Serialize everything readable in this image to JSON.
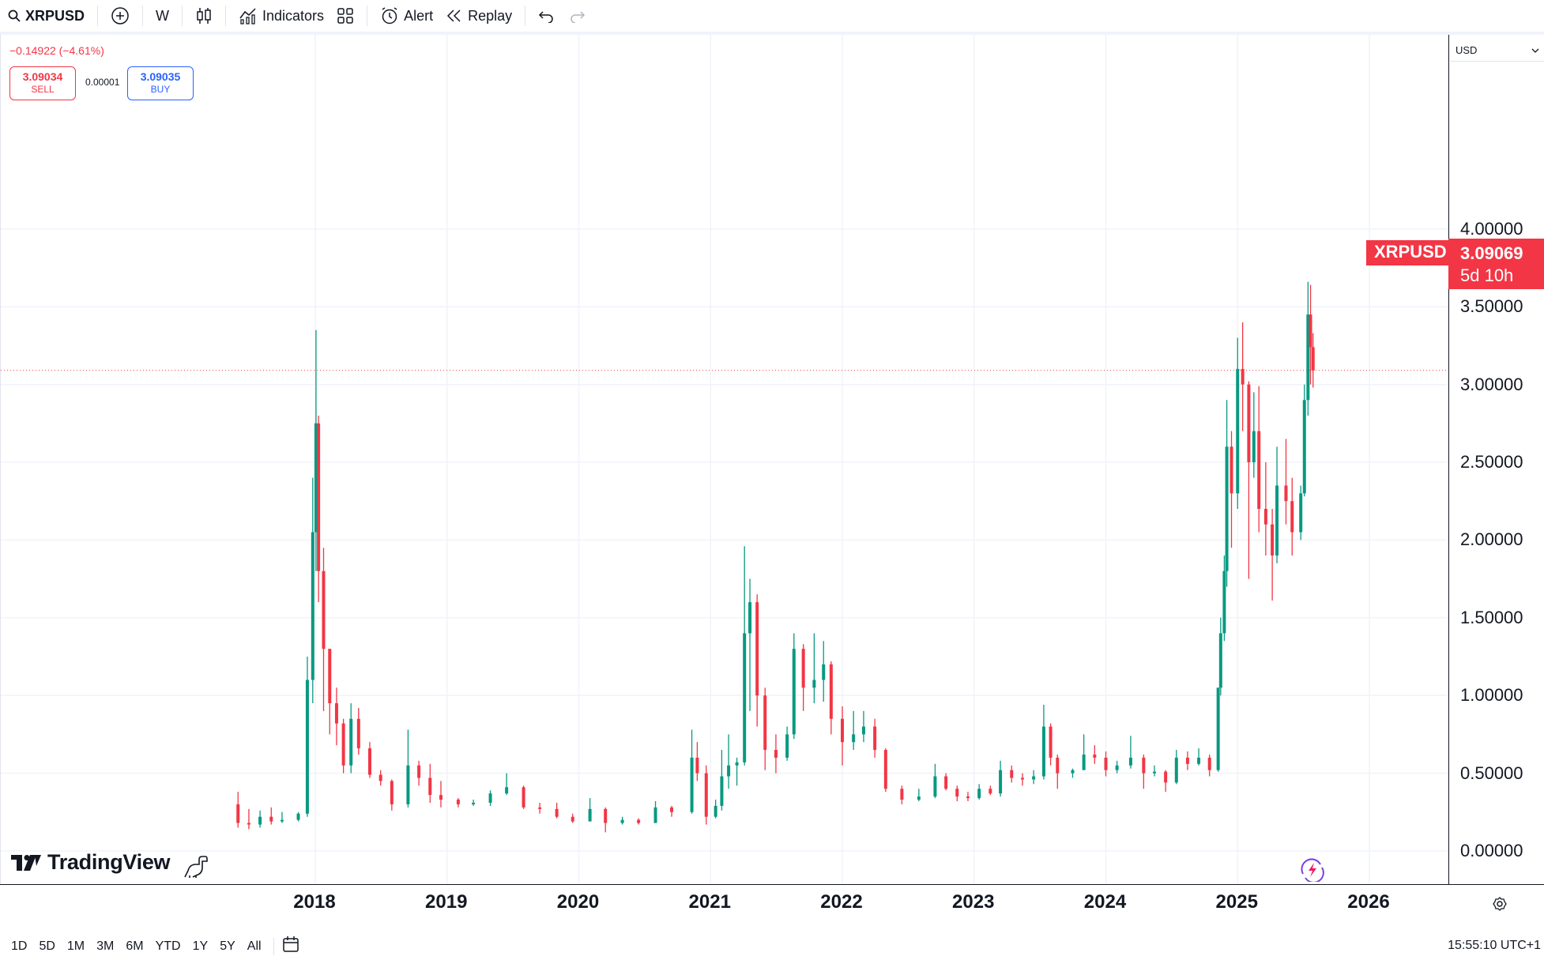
{
  "toolbar": {
    "symbol": "XRPUSD",
    "interval": "W",
    "indicators_label": "Indicators",
    "alert_label": "Alert",
    "replay_label": "Replay",
    "icons": [
      "search-icon",
      "add-symbol-icon",
      "candles-icon",
      "indicators-icon",
      "layout-icon",
      "alert-icon",
      "replay-icon",
      "undo-icon",
      "redo-icon"
    ]
  },
  "legend": {
    "change": "−0.14922 (−4.61%)",
    "sell_price": "3.09034",
    "sell_label": "SELL",
    "spread": "0.00001",
    "buy_price": "3.09035",
    "buy_label": "BUY"
  },
  "price_scale": {
    "currency": "USD",
    "last_price": "3.09069",
    "countdown": "5d 10h",
    "symbol_tag": "XRPUSD"
  },
  "range_bar": [
    "1D",
    "5D",
    "1M",
    "3M",
    "6M",
    "YTD",
    "1Y",
    "5Y",
    "All"
  ],
  "clock": "15:55:10 UTC+1",
  "logo_text": "TradingView",
  "colors": {
    "up": "#089981",
    "down": "#f23645",
    "grid": "#f0f3fa",
    "last_price": "#f23645"
  },
  "chart_data": {
    "type": "candlestick",
    "interval": "weekly",
    "ylim": [
      0,
      4
    ],
    "y_ticks": [
      "4.00000",
      "3.50000",
      "3.00000",
      "2.50000",
      "2.00000",
      "1.50000",
      "1.00000",
      "0.50000",
      "0.00000"
    ],
    "x_ticks": [
      "2018",
      "2019",
      "2020",
      "2021",
      "2022",
      "2023",
      "2024",
      "2025",
      "2026"
    ],
    "last_value": 3.09069,
    "grid": true,
    "series": [
      {
        "name": "XRPUSD",
        "points": [
          [
            "2017-06-01",
            0.3,
            0.38,
            0.15,
            0.18
          ],
          [
            "2017-07-01",
            0.18,
            0.27,
            0.14,
            0.17
          ],
          [
            "2017-08-01",
            0.17,
            0.26,
            0.15,
            0.22
          ],
          [
            "2017-09-01",
            0.22,
            0.28,
            0.17,
            0.19
          ],
          [
            "2017-10-01",
            0.19,
            0.25,
            0.18,
            0.2
          ],
          [
            "2017-11-15",
            0.2,
            0.25,
            0.19,
            0.24
          ],
          [
            "2017-12-10",
            0.24,
            1.25,
            0.22,
            1.1
          ],
          [
            "2017-12-25",
            1.1,
            2.4,
            0.95,
            2.05
          ],
          [
            "2018-01-03",
            2.05,
            3.35,
            1.8,
            2.75
          ],
          [
            "2018-01-10",
            2.75,
            2.8,
            1.6,
            1.8
          ],
          [
            "2018-01-24",
            1.8,
            1.95,
            0.9,
            1.3
          ],
          [
            "2018-02-10",
            1.3,
            1.3,
            0.75,
            0.95
          ],
          [
            "2018-03-01",
            0.95,
            1.05,
            0.68,
            0.82
          ],
          [
            "2018-03-20",
            0.82,
            0.85,
            0.5,
            0.55
          ],
          [
            "2018-04-10",
            0.55,
            0.95,
            0.5,
            0.85
          ],
          [
            "2018-05-01",
            0.85,
            0.92,
            0.62,
            0.66
          ],
          [
            "2018-06-01",
            0.66,
            0.7,
            0.47,
            0.49
          ],
          [
            "2018-07-01",
            0.49,
            0.52,
            0.42,
            0.45
          ],
          [
            "2018-08-01",
            0.45,
            0.46,
            0.26,
            0.3
          ],
          [
            "2018-09-15",
            0.3,
            0.78,
            0.28,
            0.55
          ],
          [
            "2018-10-15",
            0.55,
            0.58,
            0.42,
            0.47
          ],
          [
            "2018-11-15",
            0.47,
            0.56,
            0.31,
            0.36
          ],
          [
            "2018-12-15",
            0.36,
            0.45,
            0.28,
            0.33
          ],
          [
            "2019-02-01",
            0.33,
            0.34,
            0.28,
            0.3
          ],
          [
            "2019-03-15",
            0.3,
            0.33,
            0.29,
            0.31
          ],
          [
            "2019-05-01",
            0.31,
            0.39,
            0.29,
            0.37
          ],
          [
            "2019-06-15",
            0.37,
            0.5,
            0.36,
            0.41
          ],
          [
            "2019-08-01",
            0.41,
            0.42,
            0.27,
            0.28
          ],
          [
            "2019-09-15",
            0.28,
            0.31,
            0.24,
            0.27
          ],
          [
            "2019-11-01",
            0.27,
            0.31,
            0.21,
            0.22
          ],
          [
            "2019-12-15",
            0.22,
            0.24,
            0.18,
            0.19
          ],
          [
            "2020-02-01",
            0.19,
            0.34,
            0.19,
            0.27
          ],
          [
            "2020-03-15",
            0.27,
            0.28,
            0.12,
            0.18
          ],
          [
            "2020-05-01",
            0.18,
            0.22,
            0.17,
            0.2
          ],
          [
            "2020-06-15",
            0.2,
            0.21,
            0.17,
            0.18
          ],
          [
            "2020-08-01",
            0.18,
            0.32,
            0.18,
            0.28
          ],
          [
            "2020-09-15",
            0.28,
            0.29,
            0.22,
            0.25
          ],
          [
            "2020-11-10",
            0.25,
            0.78,
            0.24,
            0.6
          ],
          [
            "2020-11-25",
            0.6,
            0.7,
            0.45,
            0.5
          ],
          [
            "2020-12-20",
            0.5,
            0.55,
            0.17,
            0.22
          ],
          [
            "2021-01-15",
            0.22,
            0.33,
            0.21,
            0.29
          ],
          [
            "2021-02-01",
            0.29,
            0.65,
            0.26,
            0.48
          ],
          [
            "2021-02-20",
            0.48,
            0.75,
            0.4,
            0.55
          ],
          [
            "2021-03-15",
            0.55,
            0.6,
            0.42,
            0.57
          ],
          [
            "2021-04-05",
            0.57,
            1.96,
            0.55,
            1.4
          ],
          [
            "2021-04-20",
            1.4,
            1.75,
            0.9,
            1.6
          ],
          [
            "2021-05-10",
            1.6,
            1.65,
            0.8,
            1.0
          ],
          [
            "2021-06-01",
            1.0,
            1.05,
            0.52,
            0.65
          ],
          [
            "2021-07-01",
            0.65,
            0.75,
            0.5,
            0.6
          ],
          [
            "2021-08-01",
            0.6,
            0.8,
            0.58,
            0.75
          ],
          [
            "2021-08-20",
            0.75,
            1.4,
            0.72,
            1.3
          ],
          [
            "2021-09-15",
            1.3,
            1.33,
            0.9,
            1.05
          ],
          [
            "2021-10-15",
            1.05,
            1.4,
            0.95,
            1.1
          ],
          [
            "2021-11-10",
            1.1,
            1.35,
            0.96,
            1.2
          ],
          [
            "2021-12-01",
            1.2,
            1.22,
            0.75,
            0.85
          ],
          [
            "2022-01-01",
            0.85,
            0.93,
            0.55,
            0.7
          ],
          [
            "2022-02-01",
            0.7,
            0.9,
            0.65,
            0.75
          ],
          [
            "2022-03-01",
            0.75,
            0.9,
            0.7,
            0.8
          ],
          [
            "2022-04-01",
            0.8,
            0.85,
            0.6,
            0.65
          ],
          [
            "2022-05-01",
            0.65,
            0.66,
            0.38,
            0.4
          ],
          [
            "2022-06-15",
            0.4,
            0.42,
            0.3,
            0.33
          ],
          [
            "2022-08-01",
            0.33,
            0.4,
            0.32,
            0.35
          ],
          [
            "2022-09-15",
            0.35,
            0.56,
            0.34,
            0.48
          ],
          [
            "2022-10-15",
            0.48,
            0.5,
            0.39,
            0.4
          ],
          [
            "2022-11-15",
            0.4,
            0.42,
            0.32,
            0.35
          ],
          [
            "2022-12-15",
            0.35,
            0.38,
            0.32,
            0.34
          ],
          [
            "2023-01-15",
            0.34,
            0.43,
            0.33,
            0.4
          ],
          [
            "2023-02-15",
            0.4,
            0.42,
            0.36,
            0.37
          ],
          [
            "2023-03-15",
            0.37,
            0.58,
            0.35,
            0.52
          ],
          [
            "2023-04-15",
            0.52,
            0.55,
            0.44,
            0.47
          ],
          [
            "2023-05-15",
            0.47,
            0.5,
            0.42,
            0.46
          ],
          [
            "2023-06-15",
            0.46,
            0.52,
            0.43,
            0.48
          ],
          [
            "2023-07-13",
            0.48,
            0.94,
            0.46,
            0.8
          ],
          [
            "2023-08-01",
            0.8,
            0.82,
            0.55,
            0.6
          ],
          [
            "2023-08-20",
            0.6,
            0.62,
            0.4,
            0.5
          ],
          [
            "2023-10-01",
            0.5,
            0.53,
            0.47,
            0.52
          ],
          [
            "2023-11-01",
            0.52,
            0.75,
            0.52,
            0.62
          ],
          [
            "2023-12-01",
            0.62,
            0.68,
            0.56,
            0.6
          ],
          [
            "2024-01-01",
            0.6,
            0.64,
            0.48,
            0.52
          ],
          [
            "2024-02-01",
            0.52,
            0.58,
            0.5,
            0.55
          ],
          [
            "2024-03-10",
            0.55,
            0.74,
            0.53,
            0.6
          ],
          [
            "2024-04-15",
            0.6,
            0.62,
            0.4,
            0.5
          ],
          [
            "2024-05-15",
            0.5,
            0.55,
            0.48,
            0.51
          ],
          [
            "2024-06-15",
            0.51,
            0.52,
            0.38,
            0.44
          ],
          [
            "2024-07-15",
            0.44,
            0.65,
            0.43,
            0.6
          ],
          [
            "2024-08-15",
            0.6,
            0.64,
            0.52,
            0.56
          ],
          [
            "2024-09-15",
            0.56,
            0.66,
            0.55,
            0.6
          ],
          [
            "2024-10-15",
            0.6,
            0.62,
            0.48,
            0.52
          ],
          [
            "2024-11-08",
            0.52,
            1.05,
            0.51,
            1.05
          ],
          [
            "2024-11-15",
            1.05,
            1.5,
            1.0,
            1.4
          ],
          [
            "2024-11-25",
            1.4,
            1.9,
            1.35,
            1.8
          ],
          [
            "2024-12-02",
            1.8,
            2.9,
            1.7,
            2.6
          ],
          [
            "2024-12-15",
            2.6,
            2.7,
            1.95,
            2.3
          ],
          [
            "2025-01-01",
            2.3,
            3.3,
            2.2,
            3.1
          ],
          [
            "2025-01-15",
            3.1,
            3.4,
            2.7,
            3.0
          ],
          [
            "2025-02-01",
            3.0,
            3.02,
            1.75,
            2.5
          ],
          [
            "2025-02-15",
            2.5,
            2.95,
            2.4,
            2.7
          ],
          [
            "2025-03-01",
            2.7,
            2.99,
            2.05,
            2.2
          ],
          [
            "2025-03-20",
            2.2,
            2.5,
            1.9,
            2.1
          ],
          [
            "2025-04-07",
            2.1,
            2.2,
            1.61,
            1.9
          ],
          [
            "2025-04-20",
            1.9,
            2.6,
            1.85,
            2.35
          ],
          [
            "2025-05-15",
            2.35,
            2.65,
            2.1,
            2.25
          ],
          [
            "2025-06-01",
            2.25,
            2.4,
            1.9,
            2.05
          ],
          [
            "2025-06-25",
            2.05,
            2.35,
            2.0,
            2.3
          ],
          [
            "2025-07-05",
            2.3,
            3.0,
            2.28,
            2.9
          ],
          [
            "2025-07-15",
            2.9,
            3.66,
            2.8,
            3.45
          ],
          [
            "2025-07-22",
            3.45,
            3.64,
            3.0,
            3.24
          ],
          [
            "2025-07-29",
            3.24,
            3.33,
            2.98,
            3.09
          ]
        ]
      }
    ]
  }
}
